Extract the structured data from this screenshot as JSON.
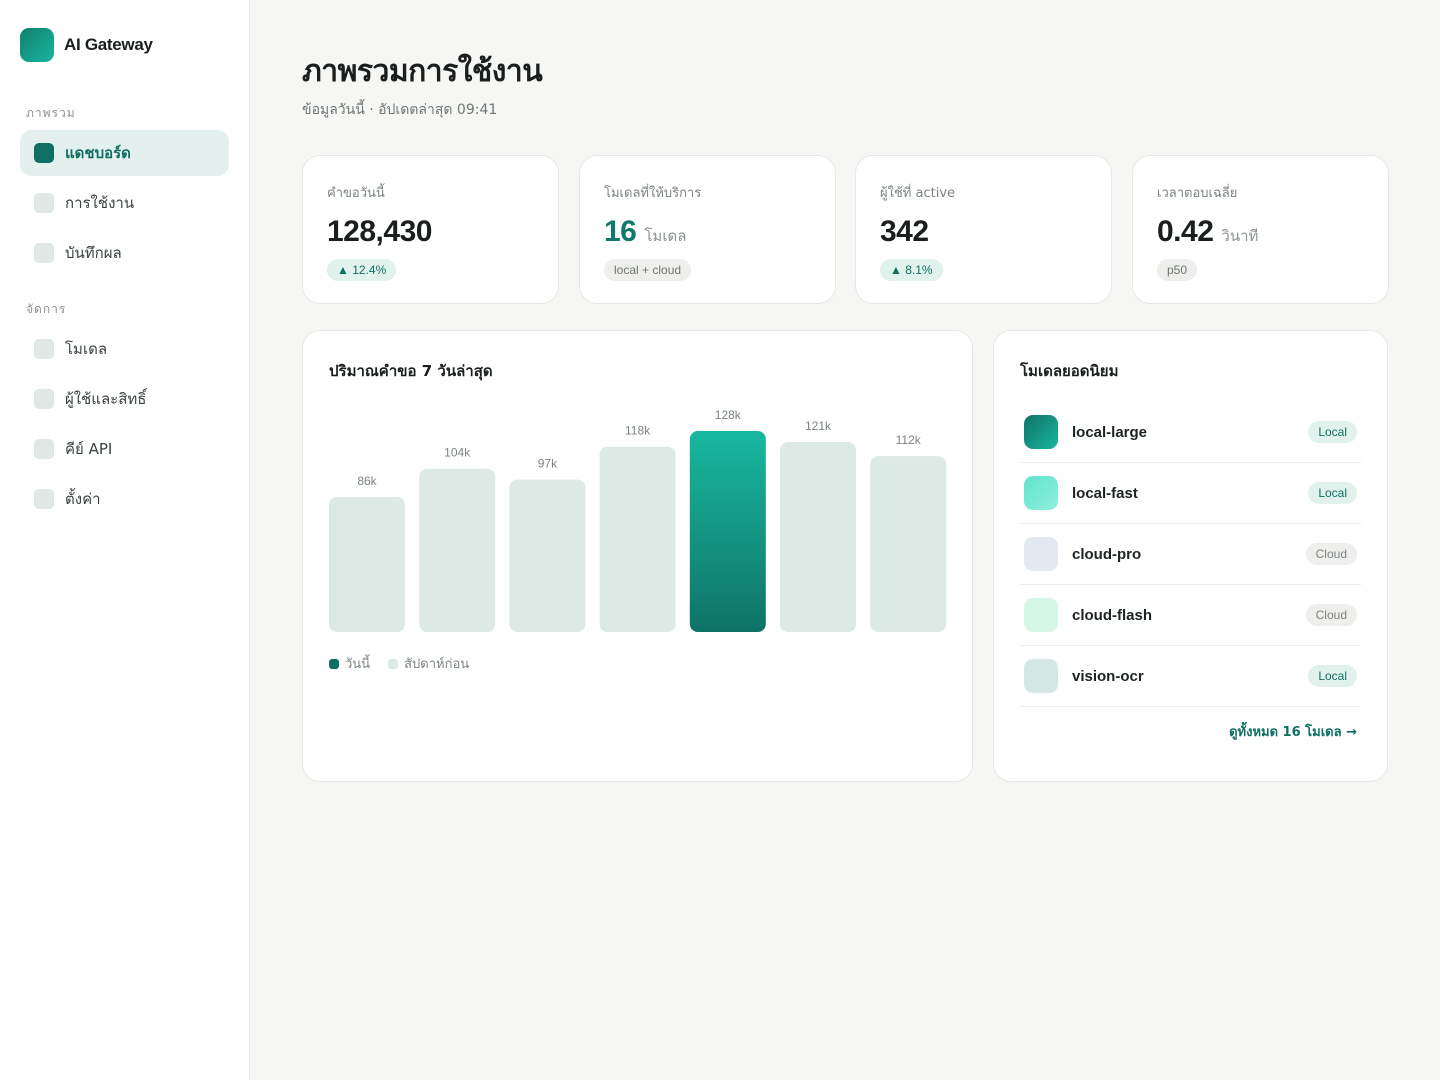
{
  "brand": {
    "name": "AI Gateway"
  },
  "sidebar": {
    "section_overview": "ภาพรวม",
    "section_manage": "จัดการ",
    "items": [
      {
        "label": "แดชบอร์ด",
        "active": true
      },
      {
        "label": "การใช้งาน",
        "active": false
      },
      {
        "label": "บันทึกผล",
        "active": false
      },
      {
        "label": "โมเดล",
        "active": false
      },
      {
        "label": "ผู้ใช้และสิทธิ์",
        "active": false
      },
      {
        "label": "คีย์ API",
        "active": false
      },
      {
        "label": "ตั้งค่า",
        "active": false
      }
    ]
  },
  "header": {
    "title": "ภาพรวมการใช้งาน",
    "subtitle": "ข้อมูลวันนี้ · อัปเดตล่าสุด 09:41"
  },
  "stats": [
    {
      "label": "คำขอวันนี้",
      "value": "128,430",
      "unit": "",
      "pill": "▲ 12.4%",
      "pill_type": "up"
    },
    {
      "label": "โมเดลที่ให้บริการ",
      "value": "16",
      "unit": "โมเดล",
      "pill": "local + cloud",
      "pill_type": "neutral"
    },
    {
      "label": "ผู้ใช้ที่ active",
      "value": "342",
      "unit": "",
      "pill": "▲ 8.1%",
      "pill_type": "up"
    },
    {
      "label": "เวลาตอบเฉลี่ย",
      "value": "0.42",
      "unit": "วินาที",
      "pill": "p50",
      "pill_type": "neutral"
    }
  ],
  "chart_panel": {
    "title": "ปริมาณคำขอ 7 วันล่าสุด",
    "legend": [
      {
        "label": "วันนี้",
        "color": "#0f6f62"
      },
      {
        "label": "สัปดาห์ก่อน",
        "color": "#dce9e5"
      }
    ]
  },
  "chart_data": {
    "type": "bar",
    "title": "ปริมาณคำขอ 7 วันล่าสุด",
    "values": [
      86,
      104,
      97,
      118,
      128,
      121,
      112
    ],
    "value_labels": [
      "86k",
      "104k",
      "97k",
      "118k",
      "128k",
      "121k",
      "112k"
    ],
    "highlight_index": 4,
    "colors": {
      "highlight_top": "#17b8a0",
      "highlight_bottom": "#0f7366",
      "base": "#dce9e5"
    },
    "ylim": [
      0,
      128
    ]
  },
  "models_panel": {
    "title": "โมเดลยอดนิยม",
    "view_all": "ดูทั้งหมด 16 โมเดล →",
    "models": [
      {
        "name": "local-large",
        "badge": "Local",
        "badge_type": "local",
        "icon_color": "linear-gradient(135deg,#0f7366,#19b59e)"
      },
      {
        "name": "local-fast",
        "badge": "Local",
        "badge_type": "local",
        "icon_color": "linear-gradient(135deg,#5fe3cc,#8ff0dc)"
      },
      {
        "name": "cloud-pro",
        "badge": "Cloud",
        "badge_type": "cloud",
        "icon_color": "#e3e8f1"
      },
      {
        "name": "cloud-flash",
        "badge": "Cloud",
        "badge_type": "cloud",
        "icon_color": "#d5f7e6"
      },
      {
        "name": "vision-ocr",
        "badge": "Local",
        "badge_type": "local",
        "icon_color": "#d3e8e4"
      }
    ]
  }
}
